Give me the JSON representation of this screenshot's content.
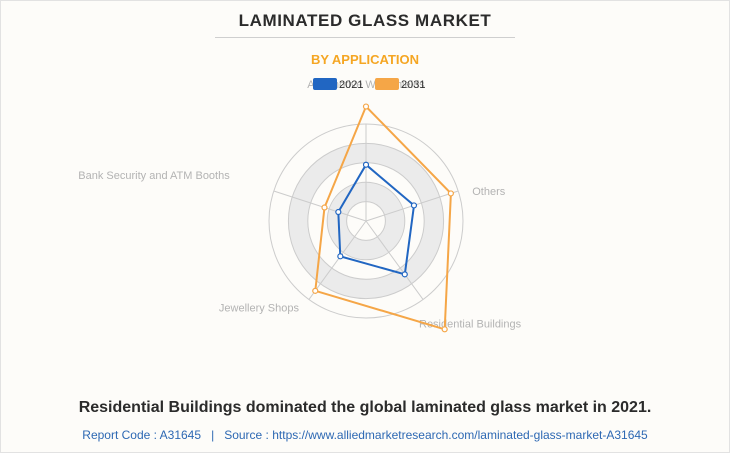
{
  "header": {
    "title": "LAMINATED GLASS MARKET",
    "subtitle": "BY APPLICATION"
  },
  "chart_data": {
    "type": "radar",
    "categories": [
      "Automotive Windshields",
      "Others",
      "Residential Buildings",
      "Jewellery Shops",
      "Bank Security and ATM Booths"
    ],
    "series": [
      {
        "name": "2021",
        "values": [
          0.58,
          0.52,
          0.68,
          0.45,
          0.3
        ],
        "color": "#2166c2"
      },
      {
        "name": "2031",
        "values": [
          1.18,
          0.92,
          1.38,
          0.89,
          0.45
        ],
        "color": "#f5a647"
      }
    ],
    "rlim": [
      0,
      1.0
    ],
    "grid_rings": 5,
    "legend_position": "top-center"
  },
  "footer": {
    "caption": "Residential Buildings dominated the global laminated glass market in 2021.",
    "report_code_label": "Report Code : A31645",
    "separator": "|",
    "source_label": "Source : https://www.alliedmarketresearch.com/laminated-glass-market-A31645"
  },
  "colors": {
    "accent": "#f5a623",
    "link": "#2d68b3",
    "grid_band": "#ebebeb",
    "grid_line": "#cccccc"
  }
}
